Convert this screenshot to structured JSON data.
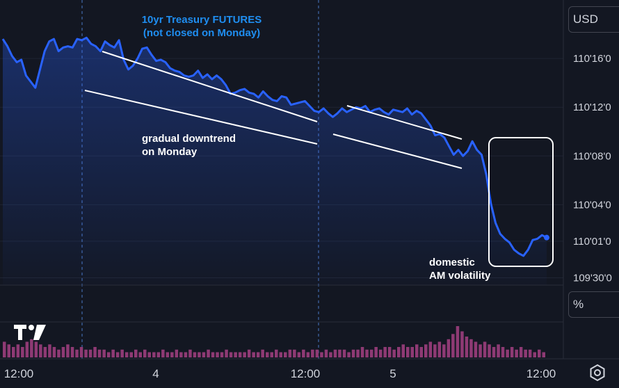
{
  "chart_data": {
    "type": "line",
    "title": "10yr Treasury FUTURES\n(not closed on Monday)",
    "x_labels": [
      "12:00",
      "4",
      "12:00",
      "5",
      "12:00"
    ],
    "y_labels": [
      "110'16'0",
      "110'12'0",
      "110'08'0",
      "110'04'0",
      "110'01'0",
      "109'30'0"
    ],
    "y_tick_values": [
      16,
      12,
      8,
      4,
      1,
      -2
    ],
    "ylim": [
      -2.6,
      20.8
    ],
    "currency": "USD",
    "scale_mode": "%",
    "annotations": [
      {
        "text": "gradual downtrend\non Monday"
      },
      {
        "text": "domestic\nAM volatility"
      }
    ],
    "series": [
      {
        "values": [
          17.6,
          17.0,
          16.2,
          15.7,
          15.9,
          14.6,
          14.1,
          13.6,
          15.1,
          16.6,
          17.4,
          17.6,
          16.6,
          16.9,
          17.0,
          16.9,
          17.6,
          17.5,
          17.7,
          17.2,
          17.0,
          16.6,
          17.4,
          17.1,
          16.9,
          17.5,
          15.9,
          15.1,
          15.4,
          16.0,
          16.8,
          16.9,
          16.3,
          15.8,
          15.9,
          15.7,
          15.2,
          15.0,
          14.9,
          14.6,
          14.5,
          14.6,
          15.0,
          14.4,
          14.7,
          14.3,
          14.6,
          14.3,
          13.8,
          13.1,
          13.2,
          13.4,
          13.5,
          13.2,
          13.1,
          12.8,
          13.3,
          12.9,
          12.6,
          12.5,
          12.9,
          12.8,
          12.2,
          12.3,
          12.4,
          12.5,
          12.1,
          11.7,
          11.6,
          11.9,
          11.5,
          11.2,
          11.5,
          11.9,
          11.6,
          11.8,
          12.0,
          11.9,
          12.1,
          11.6,
          11.8,
          11.9,
          11.6,
          11.4,
          11.8,
          11.7,
          11.6,
          11.9,
          11.4,
          11.7,
          11.5,
          11.0,
          10.5,
          9.7,
          9.8,
          9.5,
          8.8,
          8.1,
          8.5,
          8.0,
          8.4,
          9.2,
          8.5,
          8.1,
          6.5,
          4.1,
          2.5,
          1.6,
          1.2,
          0.9,
          0.3,
          0.0,
          -0.2,
          0.3,
          1.1,
          1.2,
          1.5,
          1.3
        ]
      }
    ],
    "volume": [
      6,
      5,
      4,
      5,
      4,
      6,
      7,
      6,
      5,
      4,
      5,
      4,
      3,
      4,
      5,
      4,
      3,
      4,
      3,
      3,
      4,
      3,
      3,
      2,
      3,
      2,
      3,
      2,
      2,
      3,
      2,
      3,
      2,
      2,
      2,
      3,
      2,
      2,
      3,
      2,
      2,
      3,
      2,
      2,
      2,
      3,
      2,
      2,
      2,
      3,
      2,
      2,
      2,
      2,
      3,
      2,
      2,
      3,
      2,
      2,
      3,
      2,
      2,
      3,
      3,
      2,
      3,
      2,
      3,
      3,
      2,
      3,
      2,
      3,
      3,
      3,
      2,
      3,
      3,
      4,
      3,
      3,
      4,
      3,
      4,
      4,
      3,
      4,
      5,
      4,
      4,
      5,
      4,
      5,
      6,
      5,
      6,
      5,
      7,
      9,
      12,
      10,
      8,
      7,
      6,
      5,
      6,
      5,
      4,
      5,
      4,
      3,
      4,
      3,
      4,
      3,
      3,
      2,
      3,
      2
    ]
  }
}
